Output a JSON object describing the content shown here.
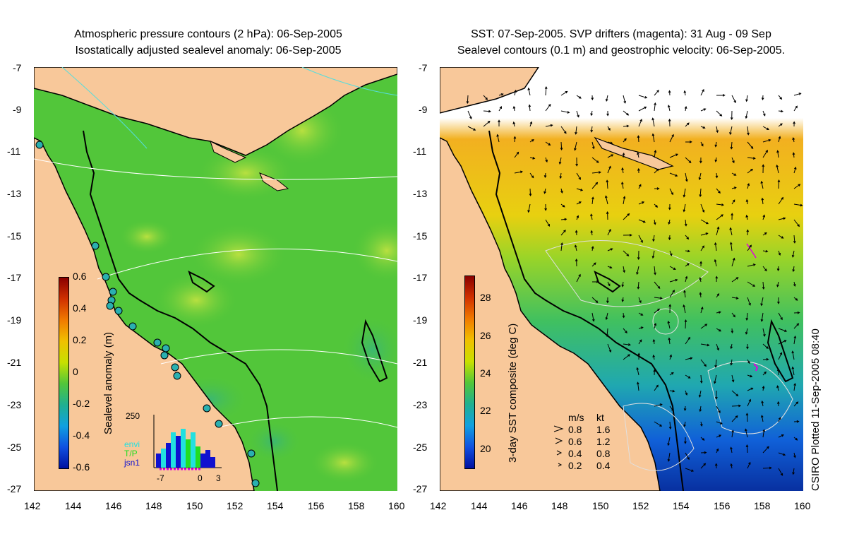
{
  "left": {
    "title_line1": "Atmospheric pressure contours (2 hPa): 06-Sep-2005",
    "title_line2": "Isostatically adjusted sealevel anomaly: 06-Sep-2005",
    "colorbar_label": "Sealevel anomaly (m)",
    "colorbar_ticks": [
      "0.6",
      "0.4",
      "0.2",
      "0",
      "-0.2",
      "-0.4",
      "-0.6"
    ],
    "histogram": {
      "ymax_label": "250",
      "series": [
        "envi",
        "T/P",
        "jsn1"
      ],
      "x_ticks": [
        "-7",
        "0",
        "3"
      ],
      "series_colors": {
        "envi": "#22e0e0",
        "T/P": "#22dd22",
        "jsn1": "#1010d0"
      }
    }
  },
  "right": {
    "title_line1": "SST: 07-Sep-2005. SVP drifters (magenta): 31 Aug - 09 Sep",
    "title_line2": "Sealevel contours (0.1 m) and geostrophic velocity: 06-Sep-2005.",
    "colorbar_label": "3-day SST composite (deg C)",
    "colorbar_ticks": [
      "28",
      "26",
      "24",
      "22",
      "20"
    ],
    "velocity_legend": {
      "header_ms": "m/s",
      "header_kt": "kt",
      "rows": [
        {
          "ms": "0.8",
          "kt": "1.6"
        },
        {
          "ms": "0.6",
          "kt": "1.2"
        },
        {
          "ms": "0.4",
          "kt": "0.8"
        },
        {
          "ms": "0.2",
          "kt": "0.4"
        }
      ]
    },
    "credit": "CSIRO Plotted 11-Sep-2005 08:40"
  },
  "y_ticks": [
    "-7",
    "-9",
    "-11",
    "-13",
    "-15",
    "-17",
    "-19",
    "-21",
    "-23",
    "-25",
    "-27"
  ],
  "x_ticks": [
    "142",
    "144",
    "146",
    "148",
    "150",
    "152",
    "154",
    "156",
    "158",
    "160"
  ],
  "colors": {
    "land": "#f8c89a",
    "ocean_green": "#52c63a",
    "ocean_light": "#8fd838"
  }
}
